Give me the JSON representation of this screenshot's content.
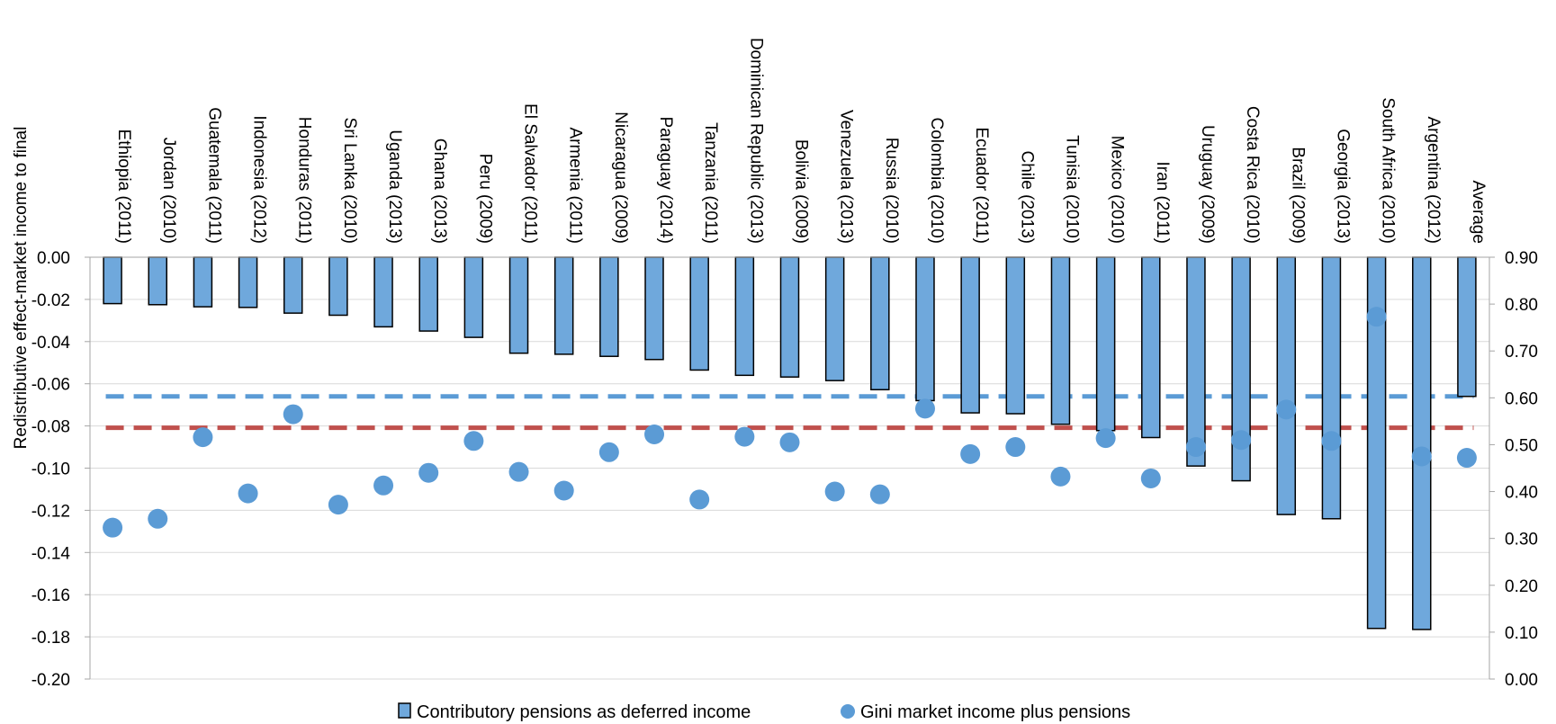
{
  "chart_data": {
    "type": "bar",
    "title": "",
    "ylabel": "Redistributive effect-market income to final",
    "y2label": "",
    "ylim": [
      -0.2,
      0
    ],
    "y2lim": [
      0,
      0.9
    ],
    "yticks": [
      "0.00",
      "-0.02",
      "-0.04",
      "-0.06",
      "-0.08",
      "-0.10",
      "-0.12",
      "-0.14",
      "-0.16",
      "-0.18",
      "-0.20"
    ],
    "y2ticks": [
      "0.90",
      "0.80",
      "0.70",
      "0.60",
      "0.50",
      "0.40",
      "0.30",
      "0.20",
      "0.10",
      "0.00"
    ],
    "grid": true,
    "legend_position": "bottom",
    "categories": [
      "Ethiopia (2011)",
      "Jordan (2010)",
      "Guatemala (2011)",
      "Indonesia (2012)",
      "Honduras (2011)",
      "Sri Lanka (2010)",
      "Uganda (2013)",
      "Ghana (2013)",
      "Peru (2009)",
      "El Salvador (2011)",
      "Armenia (2011)",
      "Nicaragua (2009)",
      "Paraguay (2014)",
      "Tanzania (2011)",
      "Dominican Republic (2013)",
      "Bolivia (2009)",
      "Venezuela (2013)",
      "Russia (2010)",
      "Colombia (2010)",
      "Ecuador (2011)",
      "Chile (2013)",
      "Tunisia (2010)",
      "Mexico (2010)",
      "Iran (2011)",
      "Uruguay (2009)",
      "Costa Rica (2010)",
      "Brazil (2009)",
      "Georgia (2013)",
      "South Africa (2010)",
      "Argentina (2012)",
      "Average"
    ],
    "series": [
      {
        "name": "Contributory pensions as deferred income",
        "kind": "bar",
        "axis": "left",
        "color": "#6fa8dc",
        "values": [
          -0.022,
          -0.0225,
          -0.0235,
          -0.0238,
          -0.0265,
          -0.0275,
          -0.033,
          -0.035,
          -0.038,
          -0.0455,
          -0.046,
          -0.047,
          -0.0485,
          -0.0535,
          -0.056,
          -0.0568,
          -0.0585,
          -0.0628,
          -0.068,
          -0.0738,
          -0.0742,
          -0.0792,
          -0.0822,
          -0.0855,
          -0.099,
          -0.106,
          -0.122,
          -0.124,
          -0.176,
          -0.1765,
          -0.066
        ]
      },
      {
        "name": "Gini market income plus pensions",
        "kind": "scatter",
        "axis": "right",
        "color": "#5b9bd5",
        "values": [
          0.323,
          0.342,
          0.516,
          0.396,
          0.565,
          0.372,
          0.413,
          0.44,
          0.508,
          0.442,
          0.402,
          0.484,
          0.522,
          0.383,
          0.517,
          0.505,
          0.4,
          0.394,
          0.577,
          0.48,
          0.495,
          0.432,
          0.514,
          0.428,
          0.495,
          0.51,
          0.575,
          0.508,
          0.773,
          0.475,
          0.472
        ]
      }
    ],
    "reference_lines": [
      {
        "axis": "right",
        "value": 0.603,
        "color": "#5b9bd5",
        "style": "dashed"
      },
      {
        "axis": "right",
        "value": 0.536,
        "color": "#c0504d",
        "style": "dashed"
      }
    ]
  }
}
